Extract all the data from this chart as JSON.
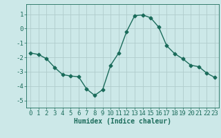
{
  "x": [
    0,
    1,
    2,
    3,
    4,
    5,
    6,
    7,
    8,
    9,
    10,
    11,
    12,
    13,
    14,
    15,
    16,
    17,
    18,
    19,
    20,
    21,
    22,
    23
  ],
  "y": [
    -1.7,
    -1.8,
    -2.1,
    -2.7,
    -3.2,
    -3.3,
    -3.35,
    -4.2,
    -4.65,
    -4.25,
    -2.55,
    -1.7,
    -0.2,
    0.9,
    0.95,
    0.75,
    0.1,
    -1.2,
    -1.75,
    -2.1,
    -2.55,
    -2.65,
    -3.1,
    -3.4
  ],
  "line_color": "#1a6b5a",
  "marker": "D",
  "markersize": 2.5,
  "linewidth": 1.0,
  "bg_color": "#cce8e8",
  "grid_color": "#b0cccc",
  "axis_bg": "#cce8e8",
  "xlabel": "Humidex (Indice chaleur)",
  "xlim": [
    -0.5,
    23.5
  ],
  "ylim": [
    -5.5,
    1.7
  ],
  "yticks": [
    -5,
    -4,
    -3,
    -2,
    -1,
    0,
    1
  ],
  "xticks": [
    0,
    1,
    2,
    3,
    4,
    5,
    6,
    7,
    8,
    9,
    10,
    11,
    12,
    13,
    14,
    15,
    16,
    17,
    18,
    19,
    20,
    21,
    22,
    23
  ],
  "xlabel_fontsize": 7,
  "tick_fontsize": 6.5
}
